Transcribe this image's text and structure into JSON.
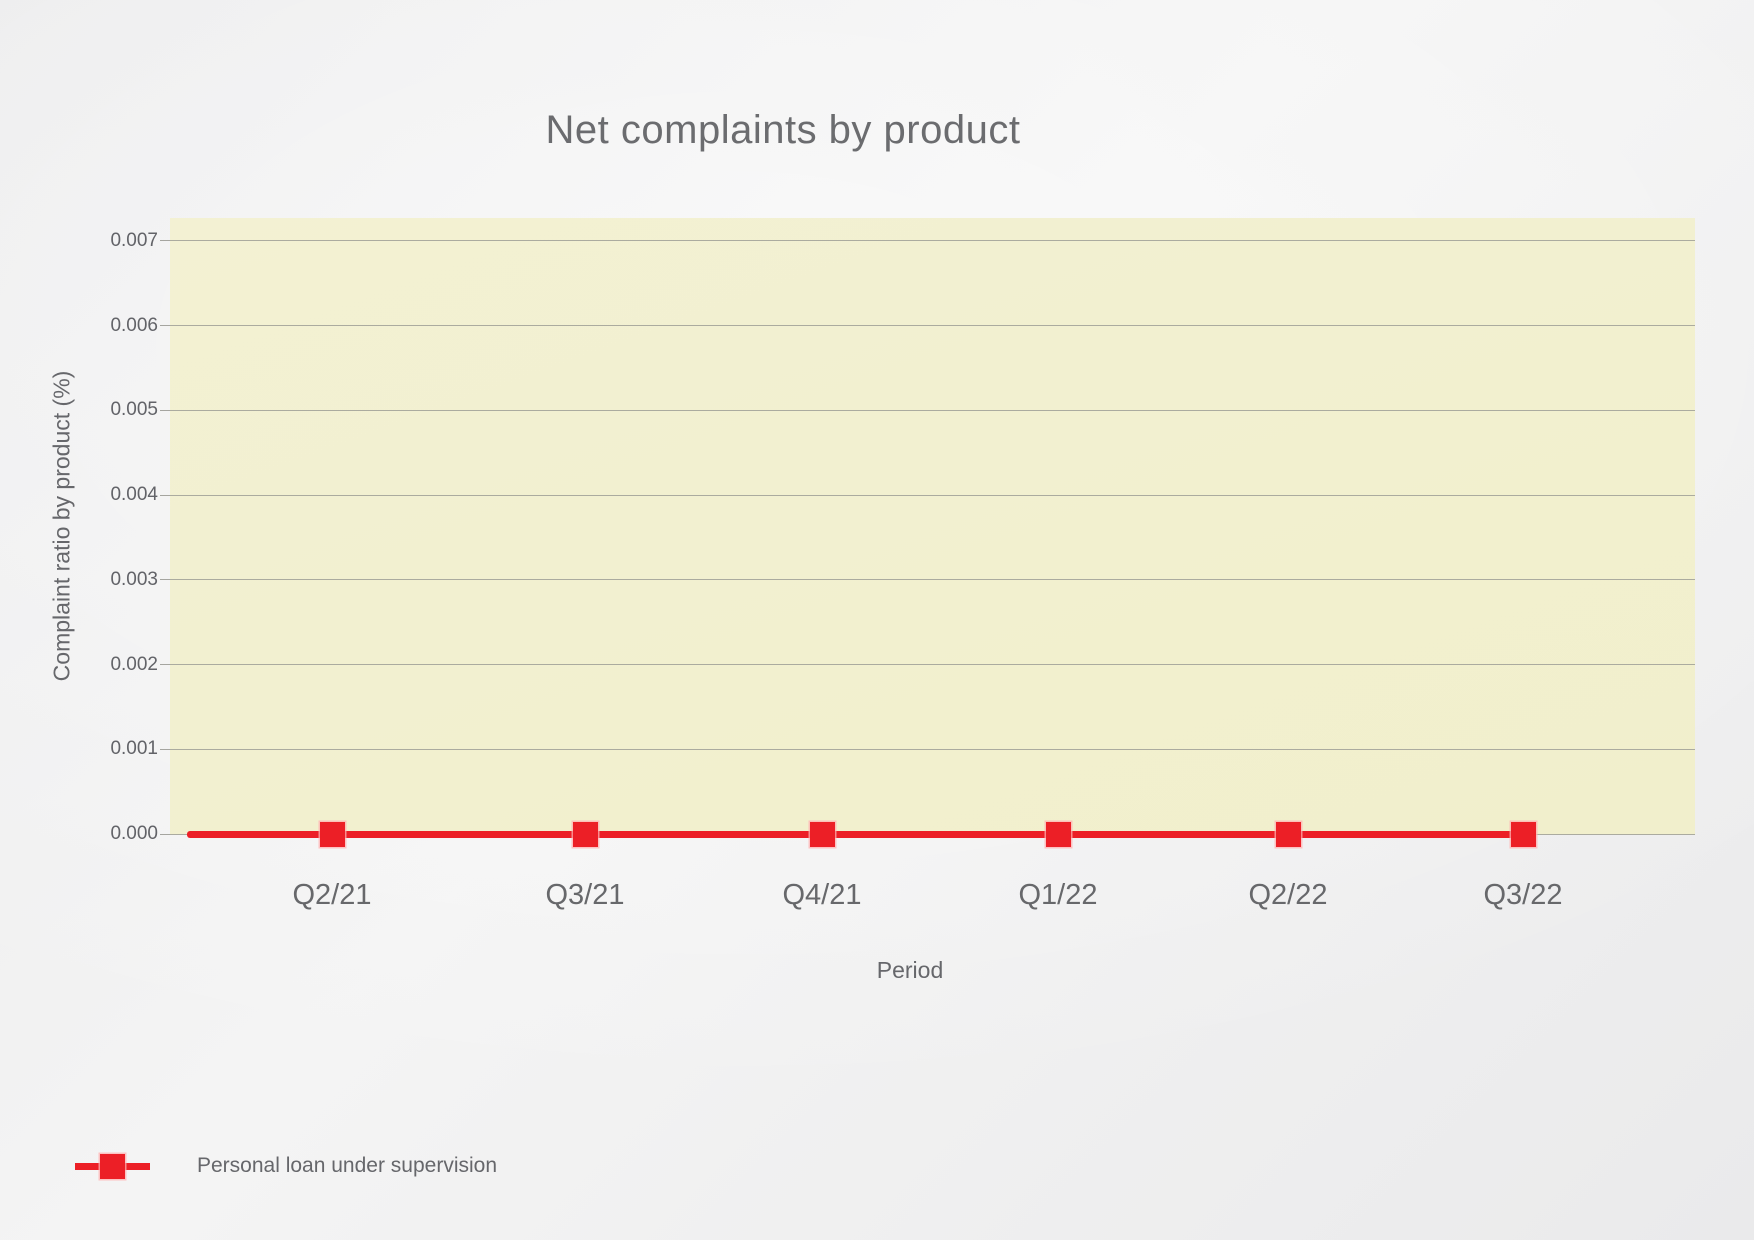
{
  "title": "Net complaints by product",
  "chart_data": {
    "type": "line",
    "title": "Net complaints by product",
    "xlabel": "Period",
    "ylabel": "Complaint ratio by product (%)",
    "categories": [
      "Q2/21",
      "Q3/21",
      "Q4/21",
      "Q1/22",
      "Q2/22",
      "Q3/22"
    ],
    "series": [
      {
        "name": "Personal loan under supervision",
        "values": [
          0,
          0,
          0,
          0,
          0,
          0
        ],
        "color": "#ec1f26",
        "marker": "square"
      }
    ],
    "y_ticks": [
      "0.000",
      "0.001",
      "0.002",
      "0.003",
      "0.004",
      "0.005",
      "0.006",
      "0.007"
    ],
    "ylim": [
      0,
      0.00727
    ],
    "grid": true,
    "legend_position": "bottom-left",
    "colors": {
      "series": "#ec1f26",
      "plot_background": "#f2f0cf",
      "gridline": "#abab9f",
      "text": "#66676b"
    }
  },
  "legend": {
    "items": [
      {
        "label": "Personal loan under supervision",
        "color": "#ec1f26"
      }
    ]
  }
}
